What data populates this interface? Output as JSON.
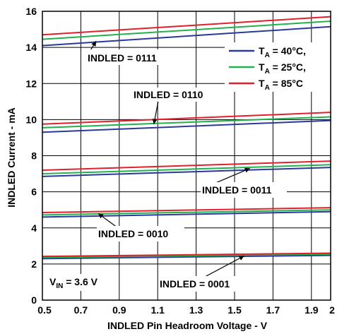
{
  "chart_data": {
    "type": "line",
    "xlabel": "INDLED Pin Headroom Voltage - V",
    "ylabel": "INDLED Current - mA",
    "xlim": [
      0.5,
      2.0
    ],
    "ylim": [
      0,
      16
    ],
    "x_ticks": [
      "0.5",
      "0.7",
      "0.9",
      "1.1",
      "1.3",
      "1.5",
      "1.7",
      "1.9",
      "2"
    ],
    "y_ticks": [
      "0",
      "2",
      "4",
      "6",
      "8",
      "10",
      "12",
      "14",
      "16"
    ],
    "grid": true,
    "legend_position": "top-right",
    "legend": [
      {
        "prefix": "T",
        "sub": "A",
        "suffix": " = 40°C,",
        "color": "#2b3a9a"
      },
      {
        "prefix": "T",
        "sub": "A",
        "suffix": " = 25°C,",
        "color": "#22b14c"
      },
      {
        "prefix": "T",
        "sub": "A",
        "suffix": " = 85°C",
        "color": "#e0212b"
      }
    ],
    "annotations": [
      {
        "label": "INDLED = 0111"
      },
      {
        "label": "INDLED = 0110"
      },
      {
        "label": "INDLED = 0011"
      },
      {
        "label": "INDLED = 0010"
      },
      {
        "label": "INDLED = 0001"
      },
      {
        "label": "V",
        "sub": "IN",
        "suffix": " = 3.6 V"
      }
    ],
    "groups": [
      {
        "setting": "INDLED = 0111",
        "series": [
          {
            "name": "T_A = 40°C",
            "x": [
              0.5,
              2.0
            ],
            "y": [
              14.1,
              15.15
            ]
          },
          {
            "name": "T_A = 25°C",
            "x": [
              0.5,
              2.0
            ],
            "y": [
              14.45,
              15.45
            ]
          },
          {
            "name": "T_A = 85°C",
            "x": [
              0.5,
              2.0
            ],
            "y": [
              14.7,
              15.7
            ]
          }
        ]
      },
      {
        "setting": "INDLED = 0110",
        "series": [
          {
            "name": "T_A = 40°C",
            "x": [
              0.5,
              2.0
            ],
            "y": [
              9.3,
              9.95
            ]
          },
          {
            "name": "T_A = 25°C",
            "x": [
              0.5,
              2.0
            ],
            "y": [
              9.55,
              10.15
            ]
          },
          {
            "name": "T_A = 85°C",
            "x": [
              0.5,
              2.0
            ],
            "y": [
              9.75,
              10.4
            ]
          }
        ]
      },
      {
        "setting": "INDLED = 0011",
        "series": [
          {
            "name": "T_A = 40°C",
            "x": [
              0.5,
              2.0
            ],
            "y": [
              6.85,
              7.35
            ]
          },
          {
            "name": "T_A = 25°C",
            "x": [
              0.5,
              2.0
            ],
            "y": [
              7.0,
              7.5
            ]
          },
          {
            "name": "T_A = 85°C",
            "x": [
              0.5,
              2.0
            ],
            "y": [
              7.2,
              7.7
            ]
          }
        ]
      },
      {
        "setting": "INDLED = 0010",
        "series": [
          {
            "name": "T_A = 40°C",
            "x": [
              0.5,
              2.0
            ],
            "y": [
              4.6,
              4.9
            ]
          },
          {
            "name": "T_A = 25°C",
            "x": [
              0.5,
              2.0
            ],
            "y": [
              4.72,
              5.0
            ]
          },
          {
            "name": "T_A = 85°C",
            "x": [
              0.5,
              2.0
            ],
            "y": [
              4.85,
              5.12
            ]
          }
        ]
      },
      {
        "setting": "INDLED = 0001",
        "series": [
          {
            "name": "T_A = 40°C",
            "x": [
              0.5,
              2.0
            ],
            "y": [
              2.3,
              2.48
            ]
          },
          {
            "name": "T_A = 25°C",
            "x": [
              0.5,
              2.0
            ],
            "y": [
              2.36,
              2.55
            ]
          },
          {
            "name": "T_A = 85°C",
            "x": [
              0.5,
              2.0
            ],
            "y": [
              2.42,
              2.6
            ]
          }
        ]
      }
    ]
  }
}
